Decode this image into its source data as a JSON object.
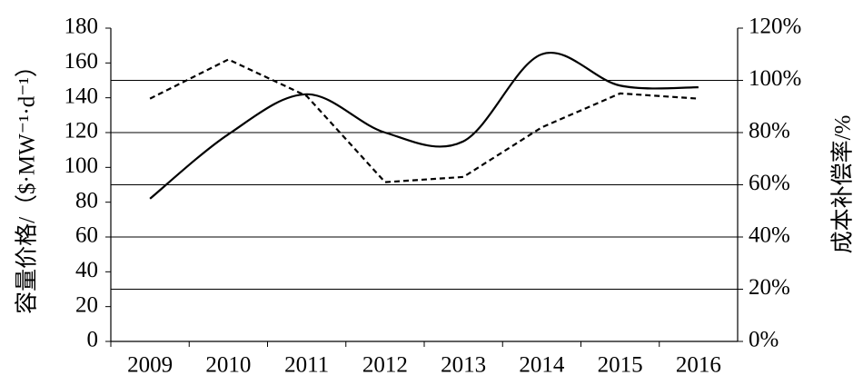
{
  "chart_data": {
    "type": "line",
    "y_label": "容量价格/（$·MW⁻¹·d⁻¹）",
    "y2_label": "成本补偿率/%",
    "categories": [
      "2009",
      "2010",
      "2011",
      "2012",
      "2013",
      "2014",
      "2015",
      "2016"
    ],
    "series": [
      {
        "color": "#000000",
        "style": "solid",
        "smooth": true,
        "values": [
          82,
          119,
          142,
          120,
          115,
          165,
          147,
          146
        ]
      },
      {
        "color": "#000000",
        "style": "dashed",
        "smooth": false,
        "axis": "y2",
        "values": [
          93,
          108,
          94,
          61,
          63,
          82,
          95,
          93
        ]
      }
    ],
    "ylim": [
      0,
      180
    ],
    "yticks": [
      0,
      20,
      40,
      60,
      80,
      100,
      120,
      140,
      160,
      180
    ],
    "y2lim": [
      0,
      120
    ],
    "y2ticks": [
      {
        "value": 0,
        "label": "0%"
      },
      {
        "value": 20,
        "label": "20%"
      },
      {
        "value": 40,
        "label": "40%"
      },
      {
        "value": 60,
        "label": "60%"
      },
      {
        "value": 80,
        "label": "80%"
      },
      {
        "value": 100,
        "label": "100%"
      },
      {
        "value": 120,
        "label": "120%"
      }
    ],
    "grid": "y2"
  }
}
